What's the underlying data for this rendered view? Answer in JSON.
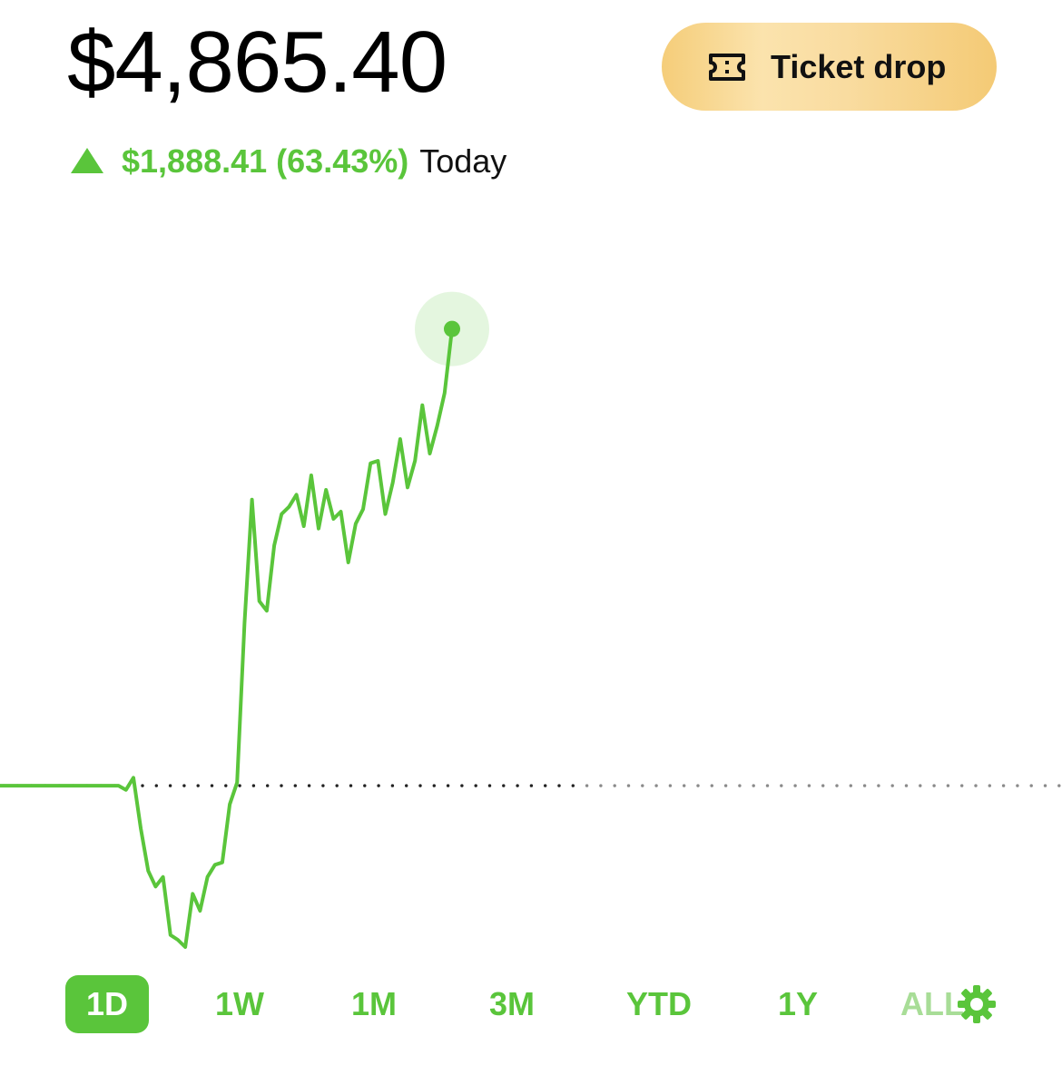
{
  "header": {
    "balance": "$4,865.40",
    "ticket_button_label": "Ticket drop",
    "change_value": "$1,888.41 (63.43%)",
    "change_period": "Today"
  },
  "colors": {
    "positive": "#5ac53b",
    "text": "#000000",
    "ticket_gold": "#f6d488"
  },
  "icons": {
    "ticket": "ticket-icon",
    "change_direction": "up-triangle-icon",
    "settings": "gear-icon"
  },
  "ranges": [
    {
      "label": "1D",
      "active": true
    },
    {
      "label": "1W",
      "active": false
    },
    {
      "label": "1M",
      "active": false
    },
    {
      "label": "3M",
      "active": false
    },
    {
      "label": "YTD",
      "active": false
    },
    {
      "label": "1Y",
      "active": false
    },
    {
      "label": "ALL",
      "active": false
    }
  ],
  "chart_data": {
    "type": "line",
    "previous_close": 2976.99,
    "y": [
      2976.99,
      2976.99,
      2976.99,
      2976.99,
      2976.99,
      2976.99,
      2976.99,
      2976.99,
      2976.99,
      2976.99,
      2976.99,
      2976.99,
      2976.99,
      2976.99,
      2976.99,
      2976.99,
      2976.99,
      2960,
      3010,
      2800,
      2625,
      2560,
      2600,
      2360,
      2340,
      2310,
      2530,
      2460,
      2600,
      2650,
      2660,
      2900,
      2990,
      3650,
      4160,
      3740,
      3700,
      3970,
      4100,
      4130,
      4180,
      4050,
      4260,
      4040,
      4200,
      4080,
      4110,
      3900,
      4060,
      4120,
      4310,
      4320,
      4100,
      4230,
      4410,
      4210,
      4320,
      4550,
      4350,
      4465,
      4600,
      4865.4
    ],
    "ylim": [
      2250,
      5400
    ],
    "grid": false,
    "legend": "none"
  }
}
